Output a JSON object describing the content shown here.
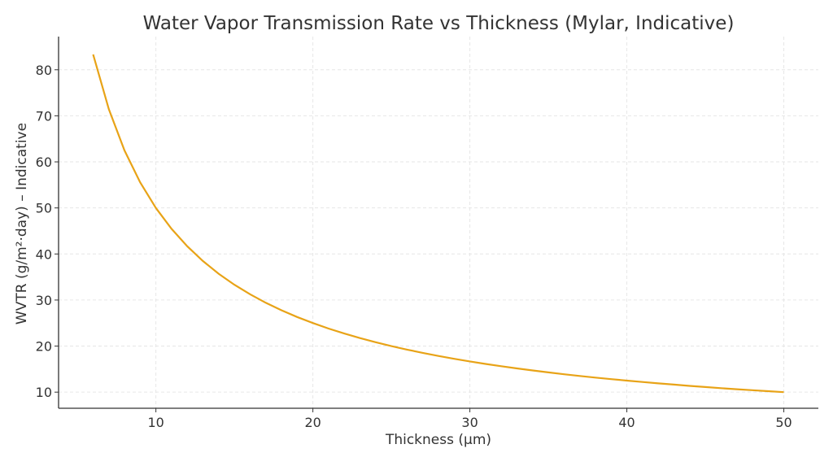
{
  "chart_data": {
    "type": "line",
    "title": "Water Vapor Transmission Rate vs Thickness (Mylar, Indicative)",
    "xlabel": "Thickness (µm)",
    "ylabel": "WVTR (g/m²·day) – Indicative",
    "xlim": [
      3.8,
      52.2
    ],
    "ylim": [
      6.5,
      87.2
    ],
    "xticks": [
      10,
      20,
      30,
      40,
      50
    ],
    "yticks": [
      10,
      20,
      30,
      40,
      50,
      60,
      70,
      80
    ],
    "grid": true,
    "line_color": "#E8A317",
    "series": [
      {
        "x": [
          6,
          7,
          8,
          9,
          10,
          11,
          12,
          13,
          14,
          15,
          16,
          17,
          18,
          19,
          20,
          21,
          22,
          23,
          24,
          25,
          26,
          27,
          28,
          29,
          30,
          31,
          32,
          33,
          34,
          35,
          36,
          37,
          38,
          39,
          40,
          41,
          42,
          43,
          44,
          45,
          46,
          47,
          48,
          49,
          50
        ],
        "y": [
          83.33,
          71.43,
          62.5,
          55.56,
          50,
          45.45,
          41.67,
          38.46,
          35.71,
          33.33,
          31.25,
          29.41,
          27.78,
          26.32,
          25,
          23.81,
          22.73,
          21.74,
          20.83,
          20,
          19.23,
          18.52,
          17.86,
          17.24,
          16.67,
          16.13,
          15.63,
          15.15,
          14.71,
          14.29,
          13.89,
          13.51,
          13.16,
          12.82,
          12.5,
          12.2,
          11.9,
          11.63,
          11.36,
          11.11,
          10.87,
          10.64,
          10.42,
          10.2,
          10
        ]
      }
    ]
  }
}
